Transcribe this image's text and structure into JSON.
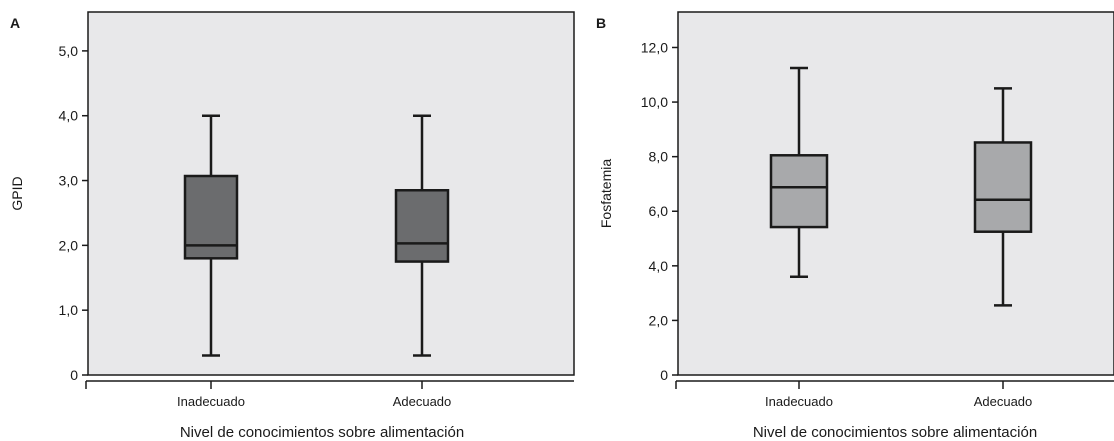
{
  "chart_data": [
    {
      "type": "boxplot",
      "panel_label": "A",
      "ylabel": "GPID",
      "xlabel": "Nivel de conocimientos sobre alimentación",
      "ylim": [
        0,
        5.6
      ],
      "yticks": [
        0,
        1.0,
        2.0,
        3.0,
        4.0,
        5.0
      ],
      "ytick_labels": [
        "0",
        "1,0",
        "2,0",
        "3,0",
        "4,0",
        "5,0"
      ],
      "categories": [
        "Inadecuado",
        "Adecuado"
      ],
      "boxes": [
        {
          "category": "Inadecuado",
          "min": 0.3,
          "q1": 1.8,
          "median": 2.0,
          "q3": 3.07,
          "max": 4.0
        },
        {
          "category": "Adecuado",
          "min": 0.3,
          "q1": 1.75,
          "median": 2.03,
          "q3": 2.85,
          "max": 4.0
        }
      ],
      "box_color": "#6b6c6e",
      "background": "#e8e8ea",
      "grid": false
    },
    {
      "type": "boxplot",
      "panel_label": "B",
      "ylabel": "Fosfatemia",
      "xlabel": "Nivel de conocimientos sobre alimentación",
      "ylim": [
        0,
        13.3
      ],
      "yticks": [
        0,
        2.0,
        4.0,
        6.0,
        8.0,
        10.0,
        12.0
      ],
      "ytick_labels": [
        "0",
        "2,0",
        "4,0",
        "6,0",
        "8,0",
        "10,0",
        "12,0"
      ],
      "categories": [
        "Inadecuado",
        "Adecuado"
      ],
      "boxes": [
        {
          "category": "Inadecuado",
          "min": 3.6,
          "q1": 5.42,
          "median": 6.88,
          "q3": 8.05,
          "max": 11.25
        },
        {
          "category": "Adecuado",
          "min": 2.55,
          "q1": 5.25,
          "median": 6.42,
          "q3": 8.52,
          "max": 10.5
        }
      ],
      "box_color": "#a8a9ab",
      "background": "#e8e8ea",
      "grid": false
    }
  ]
}
